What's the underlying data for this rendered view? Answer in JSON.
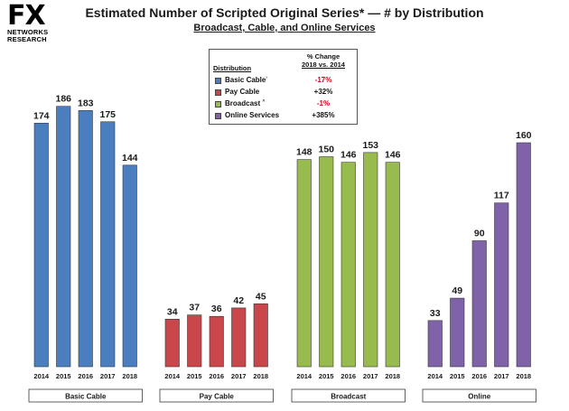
{
  "logo": {
    "brand": "FX",
    "line1": "NETWORKS",
    "line2": "RESEARCH"
  },
  "header": {
    "title": "Estimated Number of Scripted Original Series* — # by Distribution",
    "subtitle": "Broadcast, Cable, and Online Services"
  },
  "legend": {
    "col1": "Distribution",
    "col2_line1": "% Change",
    "col2_line2": "2018 vs. 2014",
    "items": [
      {
        "name": "Basic Cable",
        "sup": "¹",
        "change": "-17%",
        "color": "#4a7ebf",
        "negative": true
      },
      {
        "name": "Pay Cable",
        "sup": "",
        "change": "+32%",
        "color": "#c9474a",
        "negative": false
      },
      {
        "name": "Broadcast",
        "sup": "^",
        "change": "-1%",
        "color": "#97bb4d",
        "negative": true
      },
      {
        "name": "Online Services",
        "sup": "",
        "change": "+385%",
        "color": "#7f62a8",
        "negative": false
      }
    ]
  },
  "chart_data": {
    "type": "bar",
    "title": "Estimated Number of Scripted Original Series* — # by Distribution",
    "subtitle": "Broadcast, Cable, and Online Services",
    "ylim": [
      0,
      200
    ],
    "grid": false,
    "legend_position": "top-center",
    "groups": [
      {
        "label": "Basic Cable",
        "color": "#4a7ebf",
        "categories": [
          "2014",
          "2015",
          "2016",
          "2017",
          "2018"
        ],
        "values": [
          174,
          186,
          183,
          175,
          144
        ]
      },
      {
        "label": "Pay Cable",
        "color": "#c9474a",
        "categories": [
          "2014",
          "2015",
          "2016",
          "2017",
          "2018"
        ],
        "values": [
          34,
          37,
          36,
          42,
          45
        ]
      },
      {
        "label": "Broadcast",
        "color": "#97bb4d",
        "categories": [
          "2014",
          "2015",
          "2016",
          "2017",
          "2018"
        ],
        "values": [
          148,
          150,
          146,
          153,
          146
        ]
      },
      {
        "label": "Online",
        "color": "#7f62a8",
        "categories": [
          "2014",
          "2015",
          "2016",
          "2017",
          "2018"
        ],
        "values": [
          33,
          49,
          90,
          117,
          160
        ]
      }
    ]
  }
}
